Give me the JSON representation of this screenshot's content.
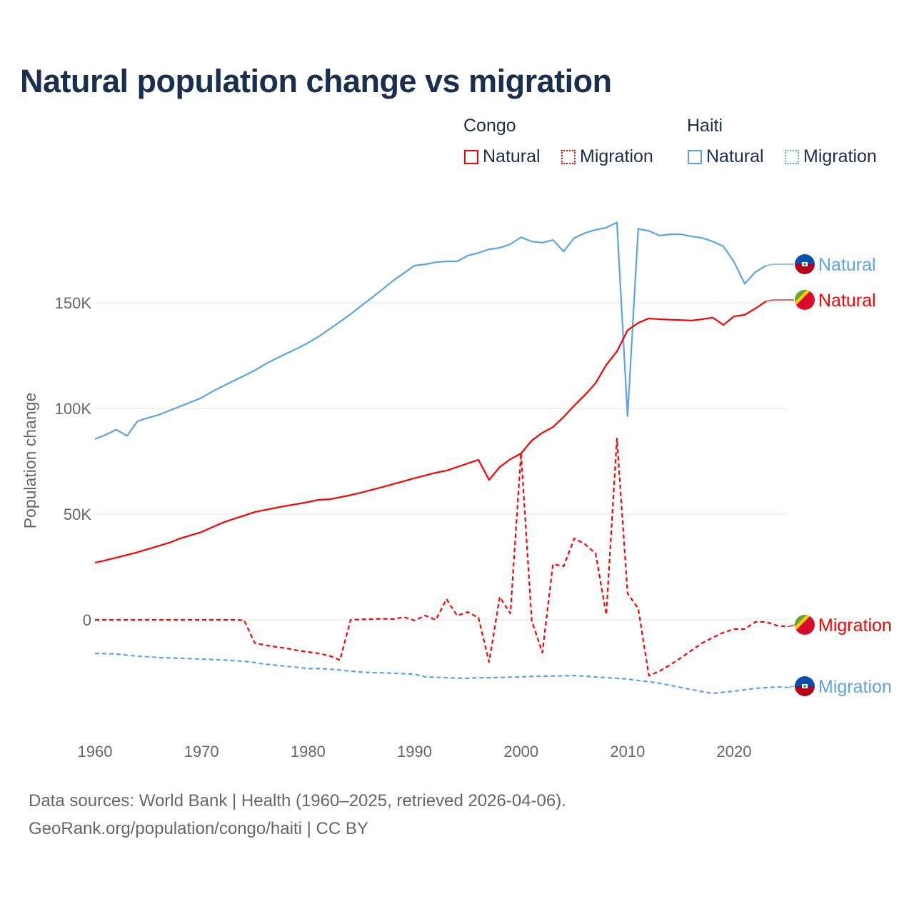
{
  "title": "Natural population change vs migration",
  "legend": {
    "groups": [
      {
        "name": "Congo",
        "items": [
          "Natural",
          "Migration"
        ],
        "color": "#ff0000"
      },
      {
        "name": "Haiti",
        "items": [
          "Natural",
          "Migration"
        ],
        "color": "#5ba3e8"
      }
    ]
  },
  "footer": {
    "line1": "Data sources: World Bank | Health (1960–2025, retrieved 2026-04-06).",
    "line2": "GeoRank.org/population/congo/haiti | CC BY"
  },
  "chart_data": {
    "type": "line",
    "title": "Natural population change vs migration",
    "xlabel": "",
    "ylabel": "Population change",
    "xlim": [
      1960,
      2025
    ],
    "ylim": [
      -45000,
      200000
    ],
    "x_ticks": [
      "1960",
      "1970",
      "1980",
      "1990",
      "2000",
      "2010",
      "2020"
    ],
    "y_ticks": [
      {
        "value": 0,
        "label": "0"
      },
      {
        "value": 50000,
        "label": "50K"
      },
      {
        "value": 100000,
        "label": "100K"
      },
      {
        "value": 150000,
        "label": "150K"
      }
    ],
    "grid": true,
    "units": "thousands",
    "series": [
      {
        "name": "Haiti Natural",
        "country": "Haiti",
        "kind": "Natural",
        "label": "Natural",
        "color": "#5ba3e8",
        "dash": false,
        "start": 1960,
        "values": [
          85.5,
          87.5,
          90,
          87,
          94,
          95.6,
          97,
          99,
          101,
          103,
          105,
          108,
          110.5,
          113,
          115.5,
          118,
          121,
          123.6,
          126,
          128.4,
          131,
          134,
          137.5,
          141,
          144.6,
          148.6,
          152.4,
          156.4,
          160.5,
          164,
          167.6,
          168.2,
          169.2,
          169.6,
          169.6,
          172.3,
          173.6,
          175.3,
          176,
          177.7,
          181,
          179,
          178.4,
          179.7,
          174.3,
          180.7,
          183,
          184.5,
          185.5,
          188,
          96.3,
          185,
          184,
          181.8,
          182.4,
          182.4,
          181.4,
          180.7,
          179,
          176.7,
          169.3,
          159,
          164.5,
          167.6
        ]
      },
      {
        "name": "Congo Natural",
        "country": "Congo",
        "kind": "Natural",
        "label": "Natural",
        "color": "#ff0000",
        "dash": false,
        "start": 1960,
        "values": [
          27,
          28.2,
          29.4,
          30.7,
          32,
          33.5,
          35,
          36.5,
          38.5,
          40,
          41.5,
          43.8,
          46,
          47.7,
          49.3,
          51,
          52,
          53,
          54,
          54.8,
          55.7,
          56.8,
          57,
          58,
          59,
          60.2,
          61.5,
          62.8,
          64.2,
          65.6,
          67,
          68.3,
          69.6,
          70.6,
          72.3,
          74,
          75.7,
          66.2,
          72.3,
          76,
          78.7,
          84.8,
          88.5,
          91.2,
          96,
          101.4,
          106.4,
          112,
          120.6,
          127,
          137,
          140.5,
          142.6,
          142.2,
          142,
          141.8,
          141.6,
          142.2,
          143,
          139.5,
          143.6,
          144.3,
          147.3,
          150.7
        ]
      },
      {
        "name": "Congo Migration",
        "country": "Congo",
        "kind": "Migration",
        "label": "Migration",
        "color": "#ff0000",
        "dash": true,
        "start": 1960,
        "values": [
          0,
          0,
          0,
          0,
          0,
          0,
          0,
          0,
          0,
          0,
          0,
          0,
          0,
          0,
          -0.2,
          -11,
          -12,
          -12.8,
          -13.5,
          -14.5,
          -15.2,
          -15.9,
          -17,
          -19,
          0,
          0.2,
          0.3,
          0.5,
          0.3,
          1.3,
          -0.3,
          2,
          0,
          9.8,
          2,
          3.7,
          1,
          -20,
          10.8,
          3,
          79,
          -0.3,
          -15.5,
          26.4,
          25.3,
          38.5,
          35.8,
          31.4,
          2.4,
          85.8,
          12.5,
          5.4,
          -26.4,
          -24.3,
          -21.3,
          -18,
          -14.5,
          -11,
          -8.4,
          -6,
          -4.4,
          -4.4,
          -1,
          -1,
          -2.7,
          -3.3
        ]
      },
      {
        "name": "Haiti Migration",
        "country": "Haiti",
        "kind": "Migration",
        "label": "Migration",
        "color": "#5ba3e8",
        "dash": true,
        "start": 1960,
        "values": [
          -15.9,
          -16,
          -16.2,
          -16.7,
          -17.2,
          -17.5,
          -17.9,
          -18,
          -18.2,
          -18.4,
          -18.6,
          -18.8,
          -19,
          -19.3,
          -19.6,
          -20.2,
          -21,
          -21.5,
          -22,
          -22.5,
          -23,
          -23.1,
          -23.3,
          -23.8,
          -24.3,
          -24.7,
          -25,
          -25.1,
          -25.3,
          -25.5,
          -25.7,
          -27,
          -27.2,
          -27.4,
          -27.6,
          -27.7,
          -27.4,
          -27.4,
          -27.3,
          -27.1,
          -27,
          -26.8,
          -26.7,
          -26.6,
          -26.5,
          -26.4,
          -26.7,
          -27,
          -27.4,
          -27.7,
          -28,
          -28.7,
          -29.3,
          -30,
          -31,
          -32,
          -33,
          -34,
          -34.8,
          -34.3,
          -33.8,
          -33.1,
          -32.4,
          -32.1,
          -31.8,
          -32
        ]
      }
    ]
  }
}
